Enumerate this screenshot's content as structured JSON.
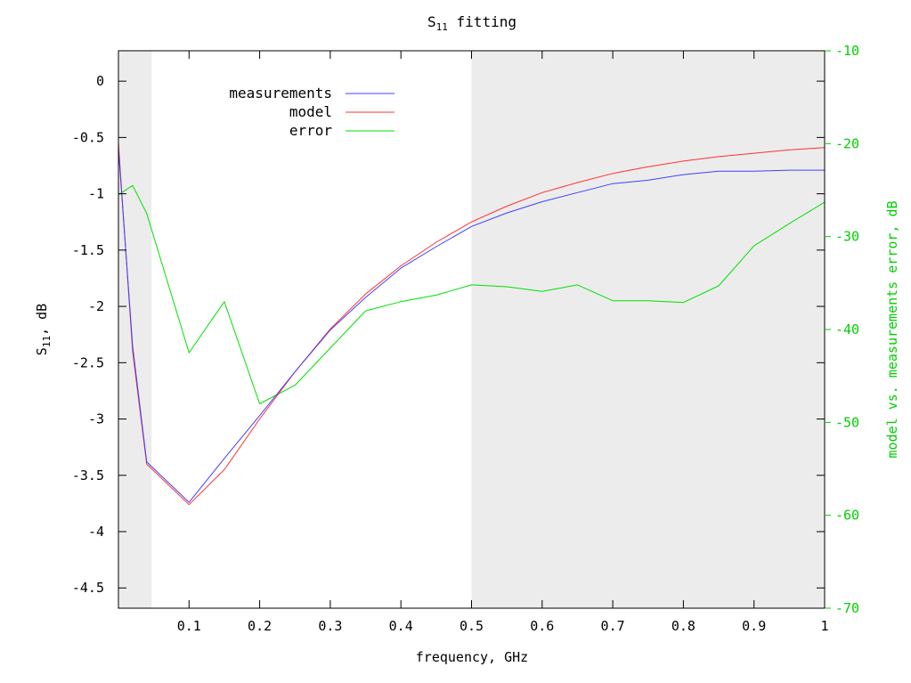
{
  "chart_data": {
    "type": "line",
    "title": {
      "main": "S",
      "sub": "11",
      "rest": " fitting"
    },
    "xlabel": "frequency, GHz",
    "ylabel": {
      "main": "S",
      "sub": "11",
      "rest": ", dB"
    },
    "y2label": "model vs. measurements error, dB",
    "xlim": [
      0,
      1
    ],
    "ylim": [
      -4.68,
      0.27
    ],
    "y2lim": [
      -70,
      -10
    ],
    "x_ticks": [
      "0.1",
      "0.2",
      "0.3",
      "0.4",
      "0.5",
      "0.6",
      "0.7",
      "0.8",
      "0.9",
      "1"
    ],
    "y_ticks": [
      "0",
      "-0.5",
      "-1",
      "-1.5",
      "-2",
      "-2.5",
      "-3",
      "-3.5",
      "-4",
      "-4.5"
    ],
    "y2_ticks": [
      "-10",
      "-20",
      "-30",
      "-40",
      "-50",
      "-60",
      "-70"
    ],
    "shaded_bands": [
      [
        0,
        0.047
      ],
      [
        0.5,
        1
      ]
    ],
    "grid": false,
    "legend_position": "top-left",
    "colors": {
      "measurements": "#4040ff",
      "model": "#ff3030",
      "error": "#00e000",
      "band": "#ececec",
      "right_axis": "#00d000"
    },
    "series": [
      {
        "name": "measurements",
        "axis": "left",
        "x": [
          0,
          0.02,
          0.04,
          0.1,
          0.15,
          0.2,
          0.25,
          0.3,
          0.35,
          0.4,
          0.45,
          0.5,
          0.55,
          0.6,
          0.65,
          0.7,
          0.75,
          0.8,
          0.85,
          0.9,
          0.95,
          1.0
        ],
        "values": [
          -0.6,
          -2.35,
          -3.38,
          -3.74,
          -3.35,
          -2.97,
          -2.58,
          -2.21,
          -1.92,
          -1.66,
          -1.47,
          -1.29,
          -1.17,
          -1.07,
          -0.99,
          -0.91,
          -0.88,
          -0.83,
          -0.8,
          -0.8,
          -0.79,
          -0.79
        ]
      },
      {
        "name": "model",
        "axis": "left",
        "x": [
          0,
          0.02,
          0.04,
          0.1,
          0.15,
          0.2,
          0.25,
          0.3,
          0.35,
          0.4,
          0.45,
          0.5,
          0.55,
          0.6,
          0.65,
          0.7,
          0.75,
          0.8,
          0.85,
          0.9,
          0.95,
          1.0
        ],
        "values": [
          -0.55,
          -2.4,
          -3.4,
          -3.76,
          -3.45,
          -3.0,
          -2.58,
          -2.2,
          -1.89,
          -1.64,
          -1.43,
          -1.25,
          -1.11,
          -0.99,
          -0.9,
          -0.82,
          -0.76,
          -0.71,
          -0.67,
          -0.64,
          -0.61,
          -0.59
        ]
      },
      {
        "name": "error",
        "axis": "right",
        "x": [
          0,
          0.02,
          0.04,
          0.1,
          0.15,
          0.2,
          0.25,
          0.3,
          0.35,
          0.4,
          0.45,
          0.5,
          0.55,
          0.6,
          0.65,
          0.7,
          0.75,
          0.8,
          0.85,
          0.9,
          0.95,
          1.0
        ],
        "values": [
          -25.5,
          -24.5,
          -27.5,
          -42.5,
          -37.0,
          -48.0,
          -46.0,
          -42.0,
          -38.0,
          -37.0,
          -36.3,
          -35.2,
          -35.4,
          -35.9,
          -35.2,
          -36.9,
          -36.9,
          -37.1,
          -35.3,
          -31.0,
          -28.6,
          -26.3
        ]
      }
    ]
  }
}
